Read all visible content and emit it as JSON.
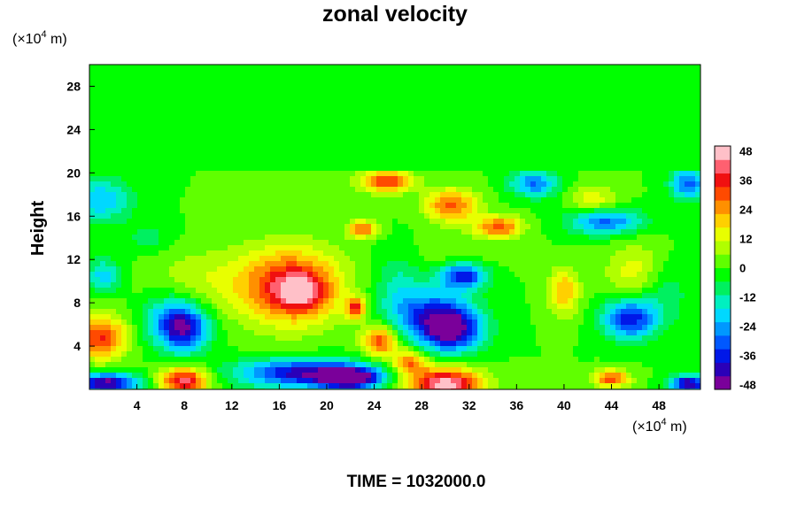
{
  "chart_data": {
    "type": "heatmap",
    "title": "zonal velocity",
    "ylabel": "Height",
    "xlabel": "",
    "x_unit_prefix": "(×10",
    "x_unit_exp": "4",
    "x_unit_suffix": " m)",
    "y_unit_prefix": "(×10",
    "y_unit_exp": "4",
    "y_unit_suffix": " m)",
    "xlim": [
      0,
      51.5
    ],
    "ylim": [
      0,
      30
    ],
    "x_ticks": [
      4,
      8,
      12,
      16,
      20,
      24,
      28,
      32,
      36,
      40,
      44,
      48
    ],
    "y_ticks": [
      4,
      8,
      12,
      16,
      20,
      24,
      28
    ],
    "colorbar": {
      "min": -50,
      "max": 50,
      "ticks": [
        48,
        36,
        24,
        12,
        0,
        -12,
        -24,
        -36,
        -48
      ],
      "colors": [
        "#7a009a",
        "#2a00b8",
        "#0018e8",
        "#0058ff",
        "#0098ff",
        "#00d8ff",
        "#00f0c0",
        "#00f060",
        "#00ff00",
        "#60ff00",
        "#b0ff00",
        "#e8ff00",
        "#ffd000",
        "#ff9000",
        "#ff4a00",
        "#f01010",
        "#ff6070",
        "#ffc0c8"
      ]
    },
    "background_value": 0,
    "upper_region": {
      "y_from": 20,
      "y_to": 30,
      "value": -4
    },
    "blobs": [
      {
        "x": 17.0,
        "y": 9.5,
        "rx": 4.2,
        "ry": 3.5,
        "v": 38
      },
      {
        "x": 17.8,
        "y": 9.0,
        "rx": 2.0,
        "ry": 1.6,
        "v": 20
      },
      {
        "x": 9.5,
        "y": 10.0,
        "rx": 4.5,
        "ry": 3.0,
        "v": 10
      },
      {
        "x": 25.0,
        "y": 19.2,
        "rx": 2.2,
        "ry": 1.0,
        "v": 34
      },
      {
        "x": 30.5,
        "y": 17.0,
        "rx": 2.2,
        "ry": 1.5,
        "v": 30
      },
      {
        "x": 34.5,
        "y": 15.0,
        "rx": 2.0,
        "ry": 1.0,
        "v": 30
      },
      {
        "x": 23.0,
        "y": 14.8,
        "rx": 1.2,
        "ry": 0.8,
        "v": 30
      },
      {
        "x": 22.5,
        "y": 7.5,
        "rx": 0.8,
        "ry": 0.9,
        "v": 35
      },
      {
        "x": 24.5,
        "y": 4.5,
        "rx": 1.5,
        "ry": 1.5,
        "v": 32
      },
      {
        "x": 27.0,
        "y": 2.5,
        "rx": 1.5,
        "ry": 1.2,
        "v": 28
      },
      {
        "x": 30.0,
        "y": 0.5,
        "rx": 3.0,
        "ry": 1.5,
        "v": 48
      },
      {
        "x": 8.0,
        "y": 0.8,
        "rx": 2.0,
        "ry": 1.2,
        "v": 42
      },
      {
        "x": 1.0,
        "y": 4.8,
        "rx": 2.2,
        "ry": 2.0,
        "v": 34
      },
      {
        "x": 40.0,
        "y": 9.0,
        "rx": 1.3,
        "ry": 2.2,
        "v": 22
      },
      {
        "x": 44.0,
        "y": 1.0,
        "rx": 1.5,
        "ry": 0.8,
        "v": 32
      },
      {
        "x": 42.5,
        "y": 17.5,
        "rx": 2.0,
        "ry": 1.3,
        "v": 15
      },
      {
        "x": 46.0,
        "y": 11.0,
        "rx": 2.5,
        "ry": 2.5,
        "v": 14
      },
      {
        "x": 31.0,
        "y": 12.5,
        "rx": 3.5,
        "ry": 2.0,
        "v": 5
      },
      {
        "x": 8.0,
        "y": 5.5,
        "rx": 2.0,
        "ry": 2.0,
        "v": -32
      },
      {
        "x": 7.0,
        "y": 6.5,
        "rx": 2.6,
        "ry": 2.4,
        "v": -22
      },
      {
        "x": 18.0,
        "y": 1.5,
        "rx": 5.5,
        "ry": 1.3,
        "v": -42
      },
      {
        "x": 22.0,
        "y": 1.0,
        "rx": 2.5,
        "ry": 1.0,
        "v": -48
      },
      {
        "x": 1.5,
        "y": 0.6,
        "rx": 2.5,
        "ry": 0.9,
        "v": -48
      },
      {
        "x": 50.5,
        "y": 0.5,
        "rx": 1.5,
        "ry": 0.8,
        "v": -46
      },
      {
        "x": 30.5,
        "y": 5.5,
        "rx": 2.5,
        "ry": 2.0,
        "v": -44
      },
      {
        "x": 28.5,
        "y": 7.0,
        "rx": 3.5,
        "ry": 2.5,
        "v": -28
      },
      {
        "x": 31.5,
        "y": 10.5,
        "rx": 2.0,
        "ry": 1.2,
        "v": -38
      },
      {
        "x": 45.5,
        "y": 6.5,
        "rx": 2.2,
        "ry": 1.8,
        "v": -38
      },
      {
        "x": 43.5,
        "y": 15.5,
        "rx": 3.0,
        "ry": 1.2,
        "v": -30
      },
      {
        "x": 37.5,
        "y": 19.0,
        "rx": 2.0,
        "ry": 1.2,
        "v": -28
      },
      {
        "x": 50.5,
        "y": 19.0,
        "rx": 1.5,
        "ry": 1.5,
        "v": -30
      },
      {
        "x": 1.0,
        "y": 17.5,
        "rx": 2.5,
        "ry": 2.0,
        "v": -22
      },
      {
        "x": 1.2,
        "y": 10.5,
        "rx": 1.5,
        "ry": 1.5,
        "v": -20
      },
      {
        "x": 48.5,
        "y": 9.0,
        "rx": 2.0,
        "ry": 3.0,
        "v": -10
      },
      {
        "x": 5.0,
        "y": 14.0,
        "rx": 2.0,
        "ry": 1.5,
        "v": -8
      },
      {
        "x": 26.0,
        "y": 10.0,
        "rx": 2.0,
        "ry": 3.0,
        "v": -10
      }
    ]
  },
  "footer": {
    "time_label": "TIME = 1032000.0"
  }
}
